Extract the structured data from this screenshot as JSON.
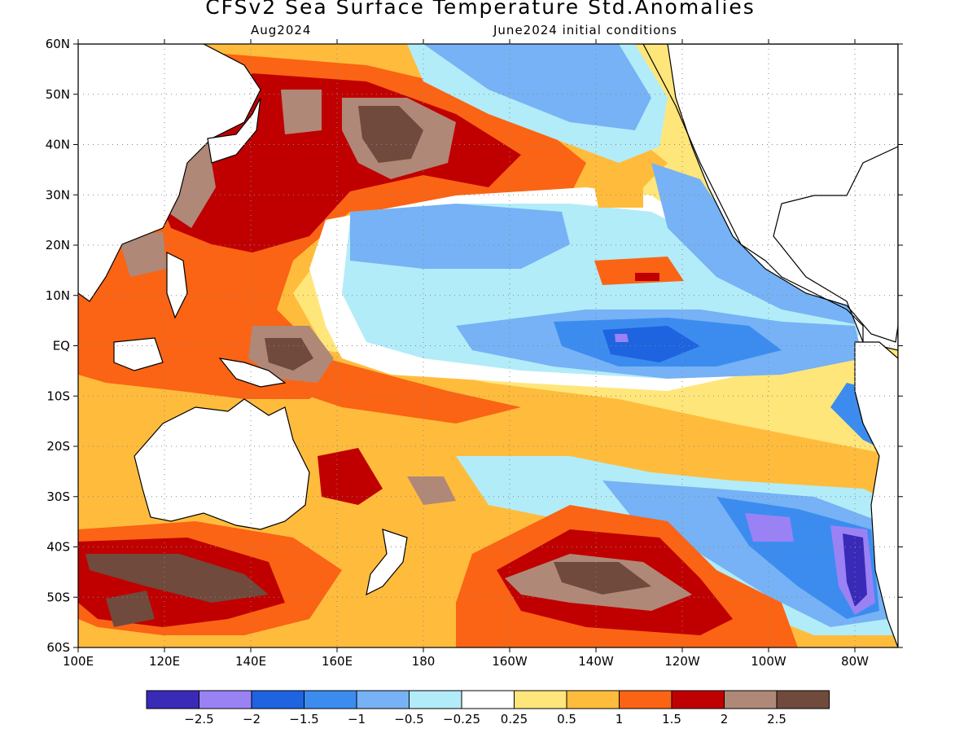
{
  "title": "CFSv2 Sea Surface Temperature Std.Anomalies",
  "valid_month": "Aug2024",
  "initial_conditions": "June2024 initial conditions",
  "lat_labels": [
    "60N",
    "50N",
    "40N",
    "30N",
    "20N",
    "10N",
    "EQ",
    "10S",
    "20S",
    "30S",
    "40S",
    "50S",
    "60S"
  ],
  "lon_labels": [
    "100E",
    "120E",
    "140E",
    "160E",
    "180",
    "160W",
    "140W",
    "120W",
    "100W",
    "80W"
  ],
  "colorbar": {
    "colors": [
      "#3a2ab8",
      "#9a82f5",
      "#1e64e0",
      "#3c8cf0",
      "#76b2f5",
      "#b2ecf8",
      "#ffffff",
      "#ffe67a",
      "#ffbc3c",
      "#fa6414",
      "#c00000",
      "#b08878",
      "#704a3c"
    ],
    "labels": [
      "−2.5",
      "−2",
      "−1.5",
      "−1",
      "−0.5",
      "−0.25",
      "0.25",
      "0.5",
      "1",
      "1.5",
      "2",
      "2.5"
    ]
  },
  "legend_thresholds": [
    -2.5,
    -2,
    -1.5,
    -1,
    -0.5,
    -0.25,
    0.25,
    0.5,
    1,
    1.5,
    2,
    2.5
  ]
}
